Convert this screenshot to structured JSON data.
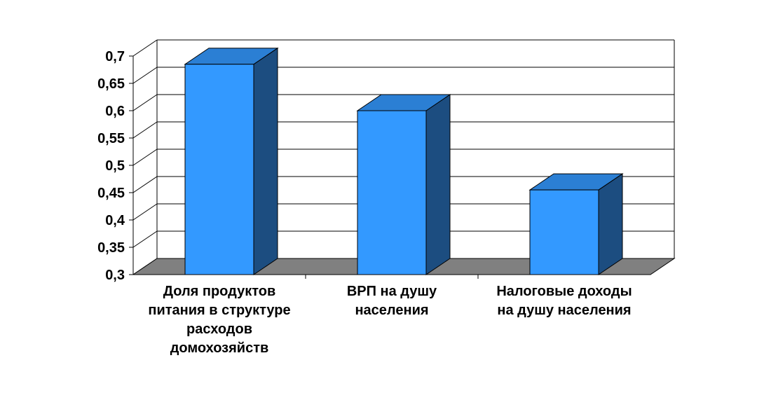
{
  "chart_data": {
    "type": "bar",
    "title": "",
    "xlabel": "",
    "ylabel": "",
    "categories": [
      [
        "Доля продуктов",
        "питания в структуре",
        "расходов",
        "домохозяйств"
      ],
      [
        "ВРП на душу",
        "населения"
      ],
      [
        "Налоговые доходы",
        "на душу населения"
      ]
    ],
    "values": [
      0.685,
      0.6,
      0.455
    ],
    "ylim": [
      0.3,
      0.7
    ],
    "yticks": [
      "0,3",
      "0,35",
      "0,4",
      "0,45",
      "0,5",
      "0,55",
      "0,6",
      "0,65",
      "0,7"
    ],
    "grid": true,
    "legend": "none",
    "colors": {
      "bar_front": "#3399ff",
      "bar_top": "#2b7fd4",
      "bar_side": "#1c4d80",
      "floor": "#808080",
      "grid": "#000000"
    }
  }
}
